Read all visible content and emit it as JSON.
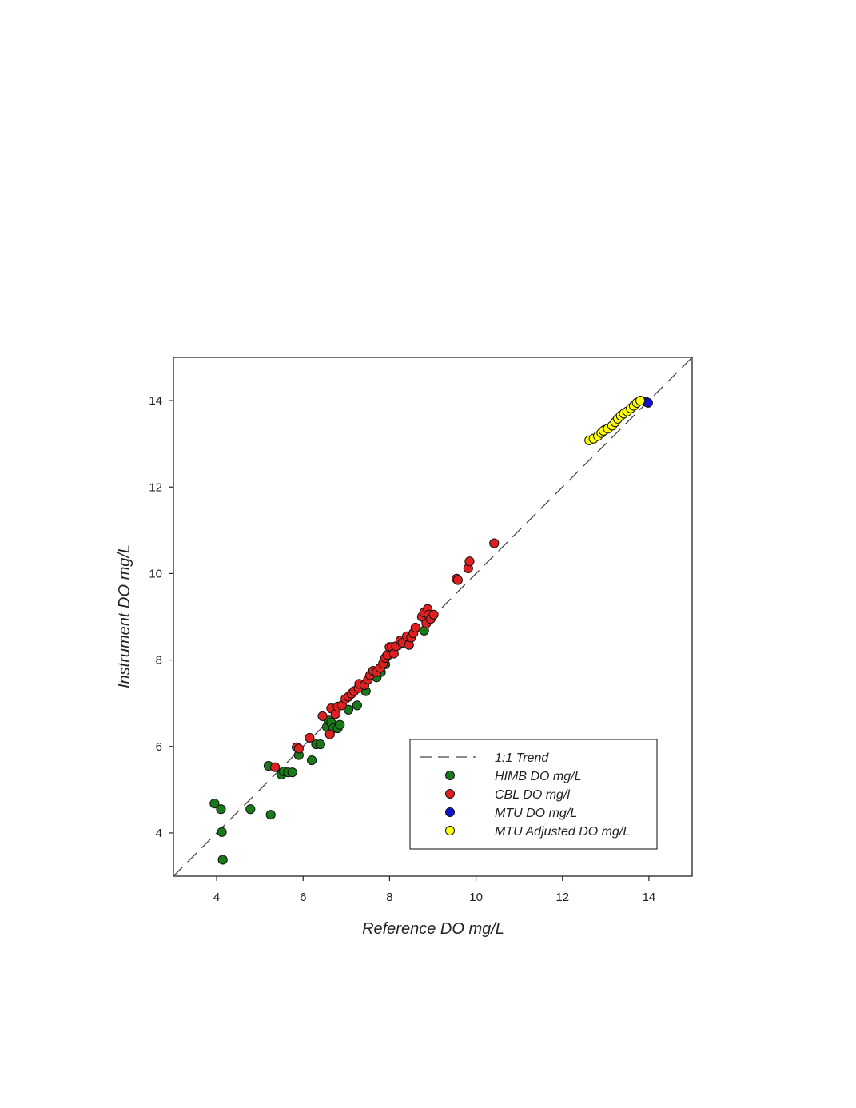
{
  "chart_data": {
    "type": "scatter",
    "xlabel": "Reference DO mg/L",
    "ylabel": "Instrument DO mg/L",
    "xlim": [
      3,
      15
    ],
    "ylim": [
      3,
      15
    ],
    "xticks": [
      4,
      6,
      8,
      10,
      12,
      14
    ],
    "yticks": [
      4,
      6,
      8,
      10,
      12,
      14
    ],
    "grid": false,
    "legend_position": "bottom-right",
    "trend_line": {
      "name": "1:1 Trend",
      "style": "dashed",
      "color": "#444444",
      "points": [
        [
          3,
          3
        ],
        [
          15,
          15
        ]
      ]
    },
    "series": [
      {
        "name": "HIMB DO mg/L",
        "color": "#1a7a1a",
        "points": [
          [
            3.95,
            4.68
          ],
          [
            4.1,
            4.55
          ],
          [
            4.12,
            4.02
          ],
          [
            4.14,
            3.38
          ],
          [
            4.78,
            4.55
          ],
          [
            5.2,
            5.55
          ],
          [
            5.25,
            4.42
          ],
          [
            5.5,
            5.35
          ],
          [
            5.55,
            5.42
          ],
          [
            5.65,
            5.4
          ],
          [
            5.75,
            5.4
          ],
          [
            5.9,
            5.8
          ],
          [
            6.2,
            5.68
          ],
          [
            6.3,
            6.05
          ],
          [
            6.4,
            6.05
          ],
          [
            6.55,
            6.45
          ],
          [
            6.6,
            6.6
          ],
          [
            6.65,
            6.55
          ],
          [
            6.7,
            6.42
          ],
          [
            6.8,
            6.42
          ],
          [
            6.85,
            6.5
          ],
          [
            7.05,
            6.85
          ],
          [
            7.25,
            6.95
          ],
          [
            7.45,
            7.28
          ],
          [
            7.7,
            7.6
          ],
          [
            7.8,
            7.72
          ],
          [
            7.9,
            7.9
          ],
          [
            8.8,
            8.68
          ]
        ]
      },
      {
        "name": "CBL DO mg/l",
        "color": "#e02020",
        "points": [
          [
            5.35,
            5.52
          ],
          [
            5.85,
            5.98
          ],
          [
            5.9,
            5.95
          ],
          [
            6.15,
            6.2
          ],
          [
            6.45,
            6.7
          ],
          [
            6.62,
            6.28
          ],
          [
            6.65,
            6.88
          ],
          [
            6.75,
            6.75
          ],
          [
            6.8,
            6.92
          ],
          [
            6.9,
            6.95
          ],
          [
            6.98,
            7.1
          ],
          [
            7.05,
            7.15
          ],
          [
            7.12,
            7.22
          ],
          [
            7.18,
            7.28
          ],
          [
            7.28,
            7.35
          ],
          [
            7.3,
            7.45
          ],
          [
            7.42,
            7.42
          ],
          [
            7.5,
            7.55
          ],
          [
            7.55,
            7.65
          ],
          [
            7.62,
            7.75
          ],
          [
            7.7,
            7.72
          ],
          [
            7.78,
            7.82
          ],
          [
            7.85,
            7.92
          ],
          [
            7.9,
            8.05
          ],
          [
            7.95,
            8.12
          ],
          [
            8.0,
            8.3
          ],
          [
            8.05,
            8.3
          ],
          [
            8.1,
            8.15
          ],
          [
            8.15,
            8.32
          ],
          [
            8.25,
            8.45
          ],
          [
            8.3,
            8.4
          ],
          [
            8.4,
            8.55
          ],
          [
            8.45,
            8.35
          ],
          [
            8.5,
            8.52
          ],
          [
            8.55,
            8.62
          ],
          [
            8.6,
            8.75
          ],
          [
            8.75,
            9.0
          ],
          [
            8.8,
            9.1
          ],
          [
            8.85,
            8.85
          ],
          [
            8.88,
            9.18
          ],
          [
            8.9,
            9.05
          ],
          [
            8.95,
            8.95
          ],
          [
            9.02,
            9.05
          ],
          [
            9.55,
            9.88
          ],
          [
            9.58,
            9.85
          ],
          [
            9.82,
            10.12
          ],
          [
            9.85,
            10.28
          ],
          [
            10.42,
            10.7
          ]
        ]
      },
      {
        "name": "MTU DO mg/L",
        "color": "#1010d0",
        "points": [
          [
            12.98,
            13.32
          ],
          [
            13.92,
            13.98
          ],
          [
            13.98,
            13.95
          ]
        ]
      },
      {
        "name": "MTU Adjusted DO mg/L",
        "color": "#ffff10",
        "points": [
          [
            12.62,
            13.08
          ],
          [
            12.72,
            13.12
          ],
          [
            12.82,
            13.18
          ],
          [
            12.9,
            13.25
          ],
          [
            12.95,
            13.3
          ],
          [
            13.05,
            13.35
          ],
          [
            13.15,
            13.42
          ],
          [
            13.22,
            13.5
          ],
          [
            13.28,
            13.58
          ],
          [
            13.35,
            13.65
          ],
          [
            13.42,
            13.7
          ],
          [
            13.5,
            13.75
          ],
          [
            13.58,
            13.82
          ],
          [
            13.65,
            13.88
          ],
          [
            13.72,
            13.95
          ],
          [
            13.8,
            14.0
          ]
        ]
      }
    ]
  }
}
